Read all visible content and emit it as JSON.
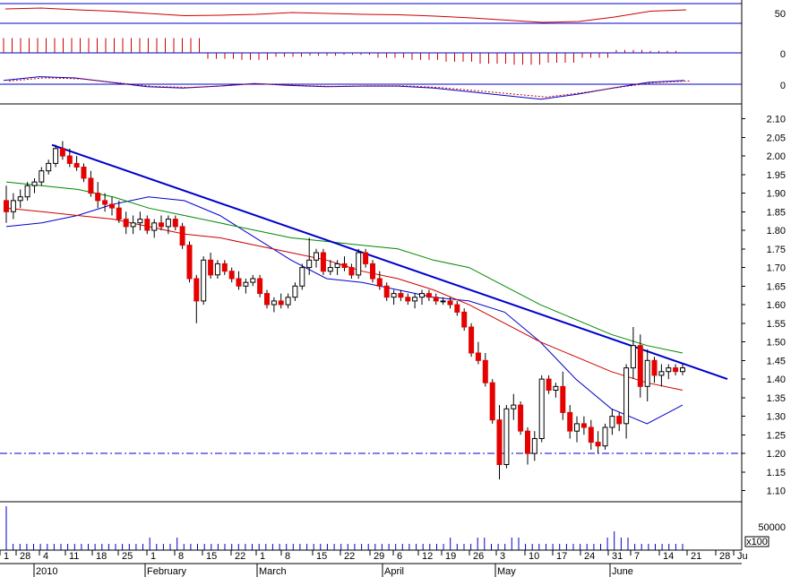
{
  "chart_data": {
    "type": "candlestick",
    "price_axis": {
      "ylim": [
        1.07,
        2.14
      ],
      "ticks": [
        "2.10",
        "2.05",
        "2.00",
        "1.95",
        "1.90",
        "1.85",
        "1.80",
        "1.75",
        "1.70",
        "1.65",
        "1.60",
        "1.55",
        "1.50",
        "1.45",
        "1.40",
        "1.35",
        "1.30",
        "1.25",
        "1.20",
        "1.15",
        "1.10"
      ]
    },
    "indicator_ticks": {
      "rsi": [
        "50"
      ],
      "histogram": [
        "0"
      ],
      "macd": [
        "0"
      ]
    },
    "volume_axis": {
      "ticks": [
        "50000"
      ],
      "unit": "x100"
    },
    "x_day_labels": [
      "1",
      "28",
      "4",
      "11",
      "18",
      "25",
      "1",
      "8",
      "15",
      "22",
      "1",
      "8",
      "15",
      "22",
      "29",
      "6",
      "12",
      "19",
      "26",
      "3",
      "10",
      "17",
      "24",
      "31",
      "7",
      "14",
      "21",
      "28",
      "Ju"
    ],
    "x_month_labels": [
      "2010",
      "February",
      "March",
      "April",
      "May",
      "June"
    ],
    "support_level": 1.2,
    "trendline": {
      "from": 2.03,
      "to": 1.4
    },
    "candles": [
      [
        1.88,
        1.92,
        1.82,
        1.85
      ],
      [
        1.85,
        1.9,
        1.83,
        1.88
      ],
      [
        1.88,
        1.91,
        1.86,
        1.89
      ],
      [
        1.89,
        1.93,
        1.88,
        1.92
      ],
      [
        1.92,
        1.94,
        1.9,
        1.93
      ],
      [
        1.93,
        1.97,
        1.92,
        1.96
      ],
      [
        1.96,
        1.99,
        1.95,
        1.98
      ],
      [
        1.98,
        2.03,
        1.97,
        2.02
      ],
      [
        2.02,
        2.04,
        1.99,
        2.0
      ],
      [
        2.0,
        2.02,
        1.97,
        1.98
      ],
      [
        1.98,
        2.0,
        1.96,
        1.97
      ],
      [
        1.97,
        1.98,
        1.93,
        1.94
      ],
      [
        1.94,
        1.96,
        1.89,
        1.9
      ],
      [
        1.9,
        1.93,
        1.86,
        1.88
      ],
      [
        1.88,
        1.9,
        1.85,
        1.87
      ],
      [
        1.87,
        1.89,
        1.84,
        1.86
      ],
      [
        1.86,
        1.88,
        1.82,
        1.83
      ],
      [
        1.83,
        1.85,
        1.79,
        1.81
      ],
      [
        1.81,
        1.84,
        1.79,
        1.82
      ],
      [
        1.82,
        1.85,
        1.8,
        1.83
      ],
      [
        1.83,
        1.84,
        1.79,
        1.8
      ],
      [
        1.8,
        1.83,
        1.78,
        1.82
      ],
      [
        1.82,
        1.84,
        1.8,
        1.81
      ],
      [
        1.81,
        1.84,
        1.79,
        1.83
      ],
      [
        1.83,
        1.84,
        1.8,
        1.81
      ],
      [
        1.81,
        1.82,
        1.75,
        1.76
      ],
      [
        1.76,
        1.77,
        1.66,
        1.67
      ],
      [
        1.67,
        1.68,
        1.55,
        1.61
      ],
      [
        1.61,
        1.73,
        1.6,
        1.72
      ],
      [
        1.72,
        1.74,
        1.67,
        1.68
      ],
      [
        1.68,
        1.72,
        1.67,
        1.71
      ],
      [
        1.71,
        1.72,
        1.68,
        1.69
      ],
      [
        1.69,
        1.7,
        1.66,
        1.67
      ],
      [
        1.67,
        1.69,
        1.64,
        1.65
      ],
      [
        1.65,
        1.67,
        1.63,
        1.66
      ],
      [
        1.66,
        1.68,
        1.65,
        1.67
      ],
      [
        1.67,
        1.68,
        1.62,
        1.63
      ],
      [
        1.63,
        1.64,
        1.59,
        1.6
      ],
      [
        1.6,
        1.62,
        1.58,
        1.61
      ],
      [
        1.61,
        1.63,
        1.59,
        1.6
      ],
      [
        1.6,
        1.63,
        1.59,
        1.62
      ],
      [
        1.62,
        1.66,
        1.61,
        1.65
      ],
      [
        1.65,
        1.71,
        1.64,
        1.7
      ],
      [
        1.7,
        1.78,
        1.68,
        1.72
      ],
      [
        1.72,
        1.75,
        1.7,
        1.74
      ],
      [
        1.74,
        1.75,
        1.68,
        1.69
      ],
      [
        1.69,
        1.72,
        1.68,
        1.7
      ],
      [
        1.7,
        1.72,
        1.68,
        1.71
      ],
      [
        1.71,
        1.73,
        1.69,
        1.7
      ],
      [
        1.7,
        1.71,
        1.67,
        1.68
      ],
      [
        1.68,
        1.75,
        1.67,
        1.74
      ],
      [
        1.74,
        1.75,
        1.7,
        1.71
      ],
      [
        1.71,
        1.72,
        1.66,
        1.67
      ],
      [
        1.67,
        1.69,
        1.64,
        1.65
      ],
      [
        1.65,
        1.66,
        1.61,
        1.62
      ],
      [
        1.62,
        1.64,
        1.6,
        1.63
      ],
      [
        1.63,
        1.64,
        1.61,
        1.62
      ],
      [
        1.62,
        1.63,
        1.6,
        1.61
      ],
      [
        1.61,
        1.63,
        1.59,
        1.62
      ],
      [
        1.62,
        1.64,
        1.6,
        1.63
      ],
      [
        1.63,
        1.64,
        1.61,
        1.62
      ],
      [
        1.62,
        1.63,
        1.6,
        1.61
      ],
      [
        1.61,
        1.62,
        1.6,
        1.61
      ],
      [
        1.61,
        1.62,
        1.59,
        1.6
      ],
      [
        1.6,
        1.61,
        1.57,
        1.58
      ],
      [
        1.58,
        1.59,
        1.53,
        1.54
      ],
      [
        1.54,
        1.55,
        1.46,
        1.47
      ],
      [
        1.47,
        1.5,
        1.44,
        1.45
      ],
      [
        1.45,
        1.47,
        1.38,
        1.39
      ],
      [
        1.39,
        1.4,
        1.28,
        1.29
      ],
      [
        1.29,
        1.33,
        1.13,
        1.17
      ],
      [
        1.17,
        1.33,
        1.16,
        1.32
      ],
      [
        1.32,
        1.36,
        1.29,
        1.33
      ],
      [
        1.33,
        1.34,
        1.25,
        1.26
      ],
      [
        1.26,
        1.27,
        1.17,
        1.2
      ],
      [
        1.2,
        1.26,
        1.18,
        1.24
      ],
      [
        1.24,
        1.41,
        1.23,
        1.4
      ],
      [
        1.4,
        1.41,
        1.36,
        1.37
      ],
      [
        1.37,
        1.39,
        1.35,
        1.38
      ],
      [
        1.38,
        1.42,
        1.29,
        1.31
      ],
      [
        1.31,
        1.33,
        1.24,
        1.26
      ],
      [
        1.26,
        1.3,
        1.23,
        1.28
      ],
      [
        1.28,
        1.3,
        1.25,
        1.27
      ],
      [
        1.27,
        1.29,
        1.21,
        1.23
      ],
      [
        1.23,
        1.26,
        1.2,
        1.22
      ],
      [
        1.22,
        1.28,
        1.21,
        1.27
      ],
      [
        1.27,
        1.32,
        1.25,
        1.3
      ],
      [
        1.3,
        1.31,
        1.26,
        1.28
      ],
      [
        1.28,
        1.44,
        1.24,
        1.43
      ],
      [
        1.43,
        1.54,
        1.4,
        1.49
      ],
      [
        1.49,
        1.52,
        1.35,
        1.38
      ],
      [
        1.38,
        1.48,
        1.34,
        1.45
      ],
      [
        1.45,
        1.46,
        1.39,
        1.41
      ],
      [
        1.41,
        1.44,
        1.38,
        1.42
      ],
      [
        1.42,
        1.44,
        1.4,
        1.43
      ],
      [
        1.43,
        1.44,
        1.41,
        1.42
      ],
      [
        1.42,
        1.44,
        1.41,
        1.43
      ]
    ],
    "moving_averages": [
      {
        "color": "#0000cc",
        "values": [
          1.81,
          1.82,
          1.84,
          1.87,
          1.89,
          1.88,
          1.84,
          1.78,
          1.72,
          1.67,
          1.66,
          1.64,
          1.62,
          1.61,
          1.58,
          1.5,
          1.4,
          1.32,
          1.28,
          1.33
        ]
      },
      {
        "color": "#cc0000",
        "values": [
          1.86,
          1.85,
          1.84,
          1.83,
          1.81,
          1.79,
          1.78,
          1.76,
          1.74,
          1.72,
          1.69,
          1.67,
          1.64,
          1.6,
          1.55,
          1.5,
          1.46,
          1.42,
          1.39,
          1.37
        ]
      },
      {
        "color": "#008800",
        "values": [
          1.93,
          1.92,
          1.91,
          1.89,
          1.86,
          1.84,
          1.82,
          1.8,
          1.78,
          1.77,
          1.76,
          1.75,
          1.72,
          1.7,
          1.65,
          1.6,
          1.56,
          1.52,
          1.49,
          1.47
        ]
      }
    ],
    "rsi": [
      60,
      62,
      58,
      55,
      50,
      45,
      46,
      48,
      52,
      50,
      48,
      47,
      44,
      40,
      35,
      30,
      32,
      42,
      55,
      58
    ],
    "histogram": [
      30,
      30,
      30,
      30,
      30,
      30,
      -12,
      -14,
      -8,
      -6,
      -4,
      -10,
      -14,
      -18,
      -22,
      -24,
      -20,
      -10,
      6,
      4
    ],
    "macd": [
      0.6,
      1.2,
      1.0,
      0.3,
      -0.4,
      -0.6,
      -0.3,
      0.1,
      -0.2,
      -0.4,
      -0.3,
      -0.3,
      -0.6,
      -1.2,
      -1.8,
      -2.4,
      -1.6,
      -0.6,
      0.3,
      0.6
    ],
    "volume": [
      7,
      1,
      1,
      1,
      1,
      1,
      1,
      1,
      1,
      1,
      1,
      1,
      1,
      1,
      1,
      1,
      1,
      1,
      1,
      1,
      1,
      2,
      1,
      1,
      1,
      2,
      1,
      1,
      1,
      1,
      1,
      1,
      1,
      1,
      1,
      1,
      1,
      1,
      1,
      1,
      1,
      1,
      1,
      1,
      1,
      1,
      1,
      1,
      1,
      1,
      1,
      1,
      1,
      1,
      1,
      1,
      1,
      1,
      1,
      1,
      1,
      1,
      1,
      1,
      1,
      2,
      1,
      1,
      1,
      2,
      2,
      1,
      1,
      1,
      2,
      2,
      1,
      1,
      1,
      1,
      1,
      1,
      1,
      1,
      1,
      1,
      1,
      1,
      2,
      3,
      2,
      2,
      1,
      1,
      1,
      1,
      1,
      1,
      1,
      1
    ]
  }
}
